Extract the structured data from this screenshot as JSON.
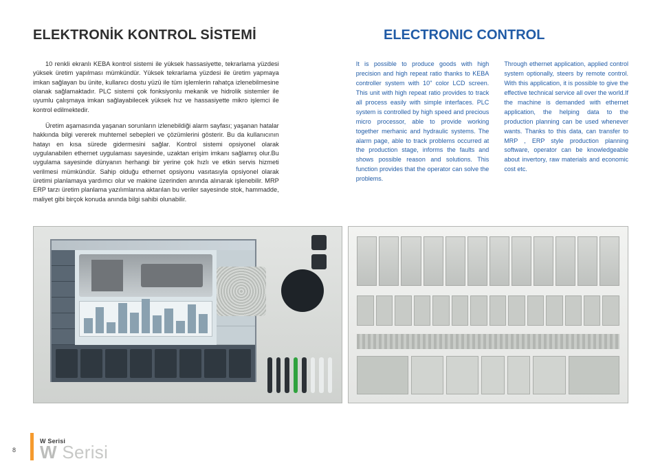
{
  "heading_tr": "ELEKTRONİK KONTROL SİSTEMİ",
  "heading_en": "ELECTRONIC CONTROL",
  "col_tr": {
    "p1": "10 renkli ekranlı KEBA kontrol sistemi ile yüksek hassasiyette, tekrarlama yüzdesi yüksek üretim yapılması mümkündür. Yüksek tekrarlama yüzdesi ile üretim yapmaya imkan sağlayan bu ünite, kullanıcı dostu yüzü ile tüm işlemlerin rahatça izlenebilmesine olanak sağlamaktadır. PLC sistemi çok fonksiyonlu mekanik ve hidrolik sistemler ile uyumlu çalışmaya imkan sağlayabilecek yüksek hız ve hassasiyette mikro işlemci ile kontrol edilmektedir.",
    "p2": "Üretim aşamasında yaşanan sorunların izlenebildiği alarm sayfası; yaşanan hatalar hakkında bilgi vererek muhtemel sebepleri ve çözümlerini gösterir. Bu da kullanıcının hatayı en kısa sürede gidermesini sağlar. Kontrol sistemi opsiyonel olarak uygulanabilen ethernet uygulaması sayesinde, uzaktan erişim imkanı sağlamış olur.Bu uygulama sayesinde dünyanın herhangi bir yerine çok hızlı ve etkin servis hizmeti verilmesi mümkündür. Sahip olduğu ethernet opsiyonu vasıtasıyla opsiyonel olarak üretimi planlamaya yardımcı olur ve makine üzerinden anında alınarak işlenebilir. MRP ERP tarzı üretim planlama yazılımlarına aktarılan bu veriler sayesinde stok, hammadde, maliyet gibi birçok konuda anında bilgi sahibi olunabilir."
  },
  "col_en1": "It is possible to produce goods with high precision and high repeat ratio thanks to KEBA controller system with 10\" color LCD screen. This unit with high repeat ratio provides to track all process easily with simple interfaces. PLC system is controlled by high speed and precious micro processor, able to provide working together merhanic and hydraulic systems. The alarm page, able to track problems occurred at the production stage, informs the faults and shows possible reason and solutions. This function provides that the operator can solve the problems.",
  "col_en2": "Through ethernet application, applied control system optionally, steers by remote control. With this application, it is possible to give the effective technical service all over the world.If the machine is demanded with ethernet application, the helping data to the production planning can be used whenever wants. Thanks to this data, can transfer to MRP , ERP style production planning software, operator can be knowledgeable about invertory, raw materials and economic cost etc.",
  "page_number": "8",
  "footer_small": "W Serisi",
  "footer_big_w": "W",
  "footer_big_rest": " Serisi",
  "colors": {
    "heading_dark": "#2e2e2e",
    "brand_blue": "#205ba6",
    "orange": "#f59a2e",
    "body_text": "#2c2c2c",
    "footer_grey": "#c7c8c6"
  },
  "chart_bars": [
    22,
    38,
    16,
    44,
    30,
    50,
    26,
    36,
    18,
    42,
    28
  ]
}
